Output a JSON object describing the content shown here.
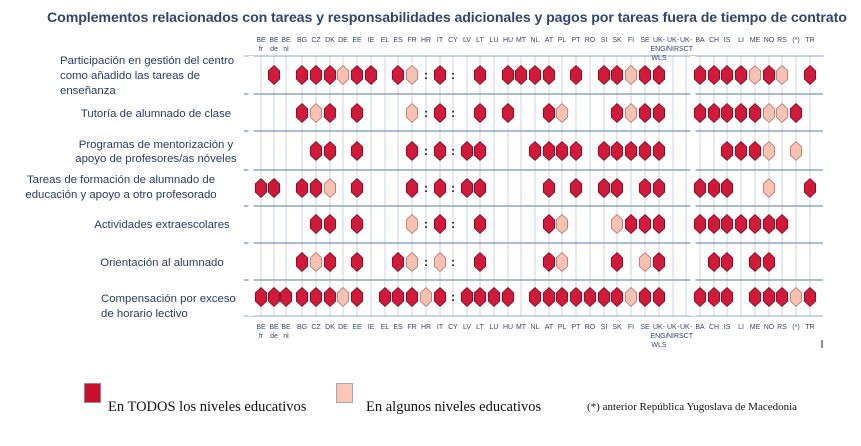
{
  "title": "Complementos relacionados con tareas y responsabilidades adicionales y pagos por tareas fuera de tiempo de contrato",
  "colors": {
    "all_levels": "#d11a3b",
    "some_levels": "#f5c2b4",
    "line": "#8fa5c9",
    "header_text": "#34456b"
  },
  "chart_data": {
    "type": "table",
    "columns": [
      "BE fr",
      "BE de",
      "BE nl",
      "BG",
      "CZ",
      "DK",
      "DE",
      "EE",
      "IE",
      "EL",
      "ES",
      "FR",
      "HR",
      "IT",
      "CY",
      "LV",
      "LT",
      "LU",
      "HU",
      "MT",
      "NL",
      "AT",
      "PL",
      "PT",
      "RO",
      "SI",
      "SK",
      "FI",
      "SE",
      "UK-ENG/WLS",
      "UK-NIR",
      "UK-SCT",
      "BA",
      "CH",
      "IS",
      "LI",
      "ME",
      "NO",
      "RS",
      "(*)",
      "TR"
    ],
    "column_labels_top": [
      "BE fr",
      "BE de",
      "BE nl",
      "BG",
      "CZ",
      "DK",
      "DE",
      "EE",
      "IE",
      "EL",
      "ES",
      "FR",
      "HR",
      "IT",
      "CY",
      "LV",
      "LT",
      "LU",
      "HU",
      "MT",
      "NL",
      "AT",
      "PL",
      "PT",
      "RO",
      "SI",
      "SK",
      "FI",
      "SE",
      "UK- ENG/ WLS",
      "UK- NIR",
      "UK- SCT",
      "BA",
      "CH",
      "IS",
      "LI",
      "ME",
      "NO",
      "RS",
      "(*)",
      "TR"
    ],
    "column_labels_bottom": [
      "BE fr",
      "BE de",
      "BE nl",
      "BG",
      "CZ",
      "DK",
      "DE",
      "EE",
      "IE",
      "EL",
      "ES",
      "FR",
      "HR",
      "IT",
      "CY",
      "LV",
      "LT",
      "LU",
      "HU",
      "MT",
      "NL",
      "AT",
      "PL",
      "PT",
      "RO",
      "SI",
      "SK",
      "FI",
      "SE",
      "UK- ENG/ WLS",
      "UK- NIR",
      "UK- SCT",
      "BA",
      "CH",
      "IS",
      "LI",
      "ME",
      "NO",
      "RS",
      "(*)",
      "TR"
    ],
    "rows": [
      {
        "label": "Participación en gestión del centro como añadido las tareas de enseñanza",
        "values": [
          "",
          "F",
          "",
          "F",
          "F",
          "F",
          "P",
          "F",
          "F",
          "",
          "F",
          "P",
          "",
          "F",
          "",
          "",
          "F",
          "",
          "F",
          "F",
          "F",
          "F",
          "",
          "F",
          "",
          "F",
          "F",
          "P",
          "F",
          "F",
          "",
          "",
          "F",
          "F",
          "F",
          "F",
          "P",
          "F",
          "P",
          "",
          "F"
        ]
      },
      {
        "label": "Tutoría de alumnado de clase",
        "values": [
          "",
          "",
          "",
          "F",
          "P",
          "F",
          "",
          "F",
          "",
          "",
          "",
          "P",
          "",
          "F",
          "",
          "",
          "F",
          "",
          "F",
          "",
          "",
          "F",
          "P",
          "",
          "",
          "",
          "F",
          "P",
          "F",
          "F",
          "",
          "",
          "F",
          "F",
          "F",
          "F",
          "F",
          "P",
          "P",
          "F",
          ""
        ]
      },
      {
        "label": "Programas de mentorización y apoyo de profesores/as nóveles",
        "values": [
          "",
          "",
          "",
          "",
          "F",
          "F",
          "",
          "F",
          "",
          "",
          "",
          "F",
          "",
          "F",
          "",
          "F",
          "F",
          "",
          "",
          "",
          "F",
          "F",
          "F",
          "F",
          "",
          "F",
          "F",
          "F",
          "F",
          "F",
          "",
          "",
          "",
          "",
          "F",
          "F",
          "F",
          "P",
          "",
          "P",
          ""
        ]
      },
      {
        "label": "Tareas de formación de alumnado de educación y apoyo a otro profesorado",
        "values": [
          "F",
          "F",
          "",
          "F",
          "F",
          "P",
          "",
          "F",
          "",
          "",
          "",
          "F",
          "",
          "F",
          "",
          "F",
          "F",
          "",
          "",
          "",
          "",
          "F",
          "",
          "F",
          "",
          "F",
          "F",
          "",
          "F",
          "F",
          "",
          "",
          "F",
          "F",
          "F",
          "",
          "",
          "P",
          "",
          "",
          "F"
        ]
      },
      {
        "label": "Actividades extraescolares",
        "values": [
          "",
          "",
          "",
          "",
          "F",
          "F",
          "",
          "F",
          "",
          "",
          "",
          "P",
          "",
          "F",
          "",
          "",
          "F",
          "",
          "",
          "",
          "",
          "F",
          "P",
          "",
          "",
          "",
          "P",
          "F",
          "F",
          "F",
          "",
          "",
          "F",
          "F",
          "F",
          "F",
          "F",
          "F",
          "F",
          "",
          ""
        ]
      },
      {
        "label": "Orientación al alumnado",
        "values": [
          "",
          "",
          "",
          "F",
          "P",
          "F",
          "",
          "F",
          "",
          "",
          "F",
          "P",
          "",
          "P",
          "",
          "",
          "F",
          "",
          "",
          "",
          "",
          "F",
          "P",
          "",
          "",
          "",
          "F",
          "",
          "P",
          "F",
          "",
          "",
          "",
          "F",
          "F",
          "",
          "F",
          "F",
          "",
          "",
          ""
        ]
      },
      {
        "label": "Compensación por exceso de horario lectivo",
        "values": [
          "F",
          "F",
          "F",
          "F",
          "F",
          "F",
          "P",
          "F",
          "",
          "F",
          "F",
          "F",
          "P",
          "F",
          "",
          "F",
          "F",
          "F",
          "F",
          "",
          "F",
          "F",
          "F",
          "F",
          "F",
          "F",
          "F",
          "P",
          "F",
          "F",
          "",
          "",
          "F",
          "F",
          "F",
          "",
          "F",
          "F",
          "F",
          "P",
          "F"
        ]
      }
    ],
    "legend": [
      "En TODOS los niveles educativos",
      "En algunos niveles educativos"
    ],
    "value_codes": {
      "F": "En TODOS los niveles educativos",
      "P": "En algunos niveles educativos"
    },
    "footnote": "(*) anterior República Yugoslava de Macedonia"
  },
  "legend": {
    "all_label": "En TODOS los niveles educativos",
    "some_label": "En algunos niveles educativos",
    "footnote": "(*) anterior República Yugoslava de Macedonia"
  }
}
